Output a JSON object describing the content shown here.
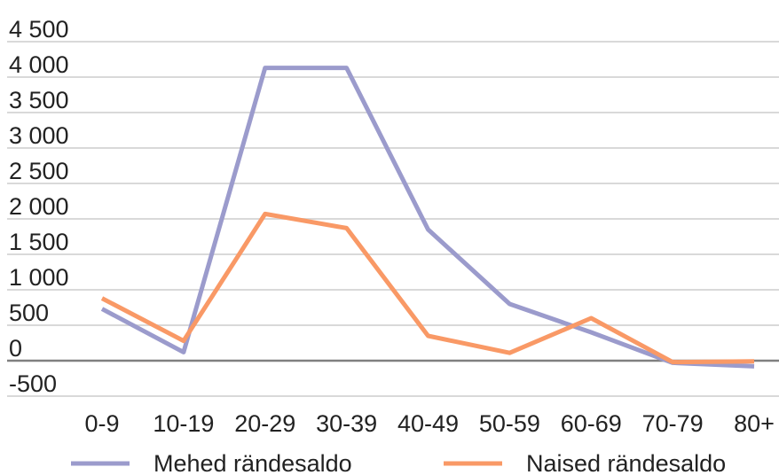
{
  "chart_data": {
    "type": "line",
    "categories": [
      "0-9",
      "10-19",
      "20-29",
      "30-39",
      "40-49",
      "50-59",
      "60-69",
      "70-79",
      "80+"
    ],
    "y_ticks": [
      {
        "value": 4500,
        "label": "4 500"
      },
      {
        "value": 4000,
        "label": "4 000"
      },
      {
        "value": 3500,
        "label": "3 500"
      },
      {
        "value": 3000,
        "label": "3 000"
      },
      {
        "value": 2500,
        "label": "2 500"
      },
      {
        "value": 2000,
        "label": "2 000"
      },
      {
        "value": 1500,
        "label": "1 500"
      },
      {
        "value": 1000,
        "label": "1 000"
      },
      {
        "value": 500,
        "label": "500"
      },
      {
        "value": 0,
        "label": "0"
      },
      {
        "value": -500,
        "label": "-500"
      }
    ],
    "ylim": [
      -500,
      4500
    ],
    "grid": true,
    "legend_position": "bottom",
    "series": [
      {
        "name": "Mehed rändesaldo",
        "color": "#9b9bcc",
        "values": [
          730,
          120,
          4130,
          4130,
          1850,
          800,
          400,
          -30,
          -80
        ]
      },
      {
        "name": "Naised rändesaldo",
        "color": "#f99966",
        "values": [
          880,
          280,
          2070,
          1870,
          350,
          110,
          600,
          -20,
          -10
        ]
      }
    ],
    "title": "",
    "xlabel": "",
    "ylabel": ""
  }
}
